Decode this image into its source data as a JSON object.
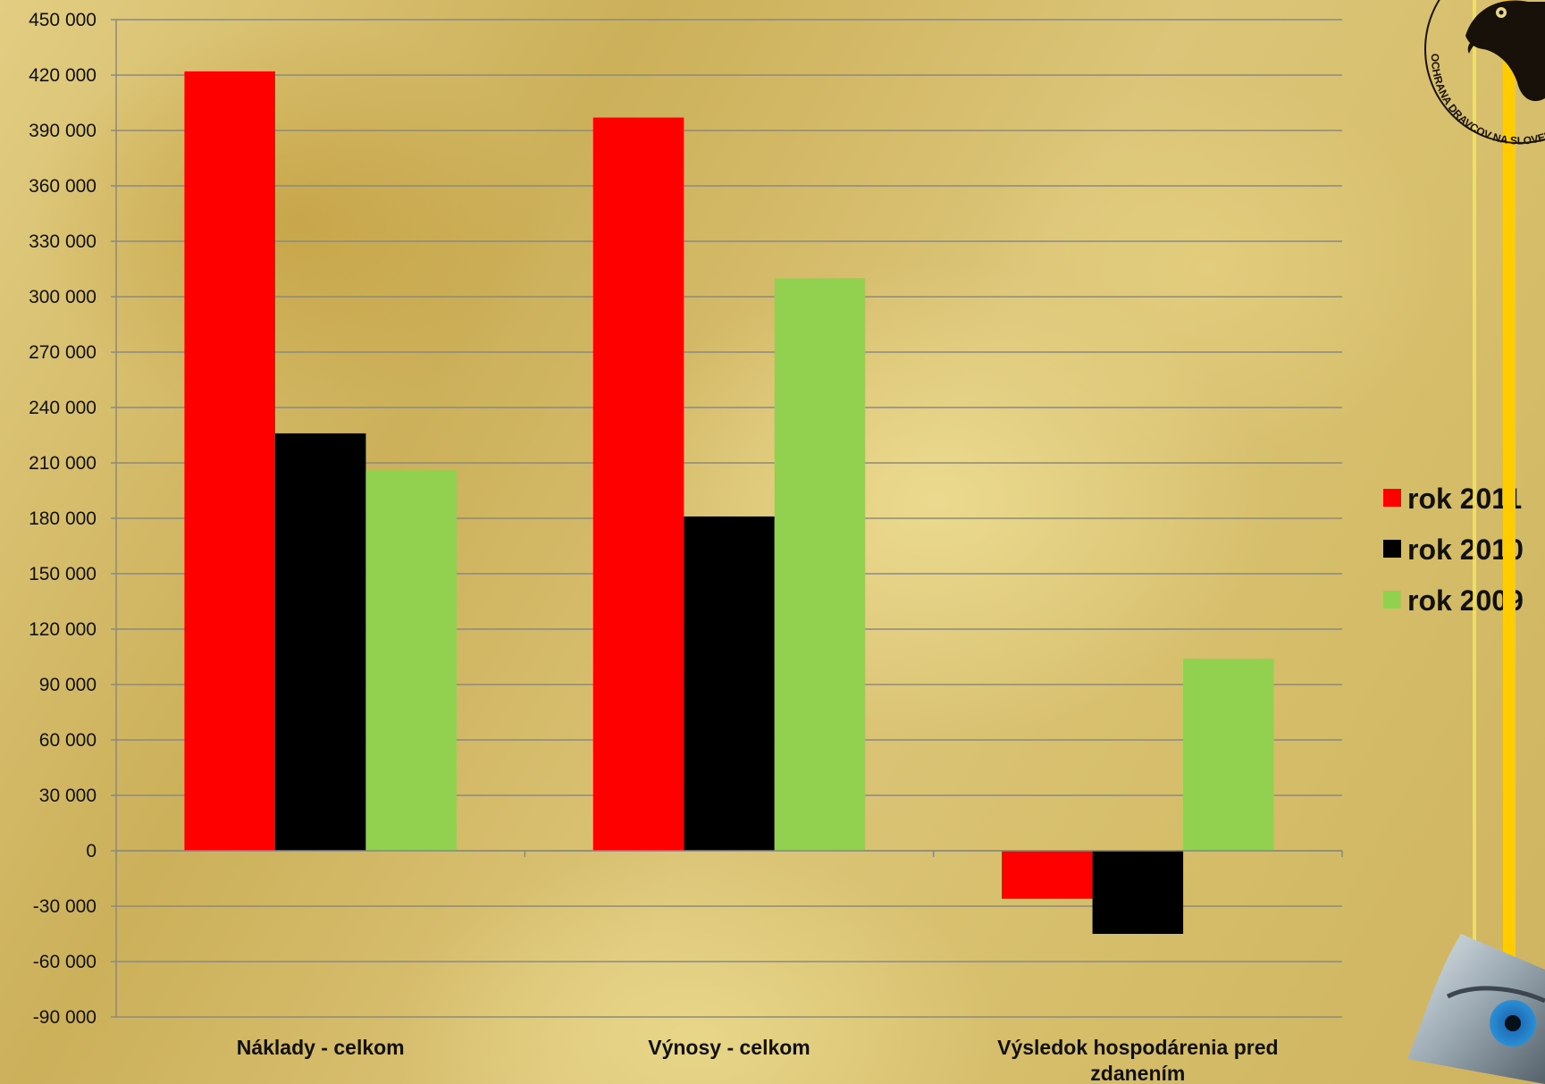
{
  "chart_data": {
    "type": "bar",
    "categories": [
      "Náklady - celkom",
      "Výnosy - celkom",
      [
        "Výsledok hospodárenia pred",
        "zdanením"
      ]
    ],
    "series": [
      {
        "name": "rok 2011",
        "color": "#ff0000",
        "values": [
          422000,
          397000,
          -26000
        ]
      },
      {
        "name": "rok 2010",
        "color": "#000000",
        "values": [
          226000,
          181000,
          -45000
        ]
      },
      {
        "name": "rok 2009",
        "color": "#92d050",
        "values": [
          206000,
          310000,
          104000
        ]
      }
    ],
    "ylim": [
      -90000,
      450000
    ],
    "yticks": [
      450000,
      420000,
      390000,
      360000,
      330000,
      300000,
      270000,
      240000,
      210000,
      180000,
      150000,
      120000,
      90000,
      60000,
      30000,
      0,
      -30000,
      -60000,
      -90000
    ],
    "ytick_labels": [
      "450 000",
      "420 000",
      "390 000",
      "360 000",
      "330 000",
      "300 000",
      "270 000",
      "240 000",
      "210 000",
      "180 000",
      "150 000",
      "120 000",
      "90 000",
      "60 000",
      "30 000",
      "0",
      "-30 000",
      "-60 000",
      "-90 000"
    ],
    "grid": true,
    "legend_position": "right"
  },
  "logo": {
    "text": "OCHRANA DRAVCOV NA SLOVENSKU",
    "icon": "eagle-head-icon"
  },
  "decor": {
    "icon": "eye-icon",
    "accent_color": "#ffcc00"
  }
}
